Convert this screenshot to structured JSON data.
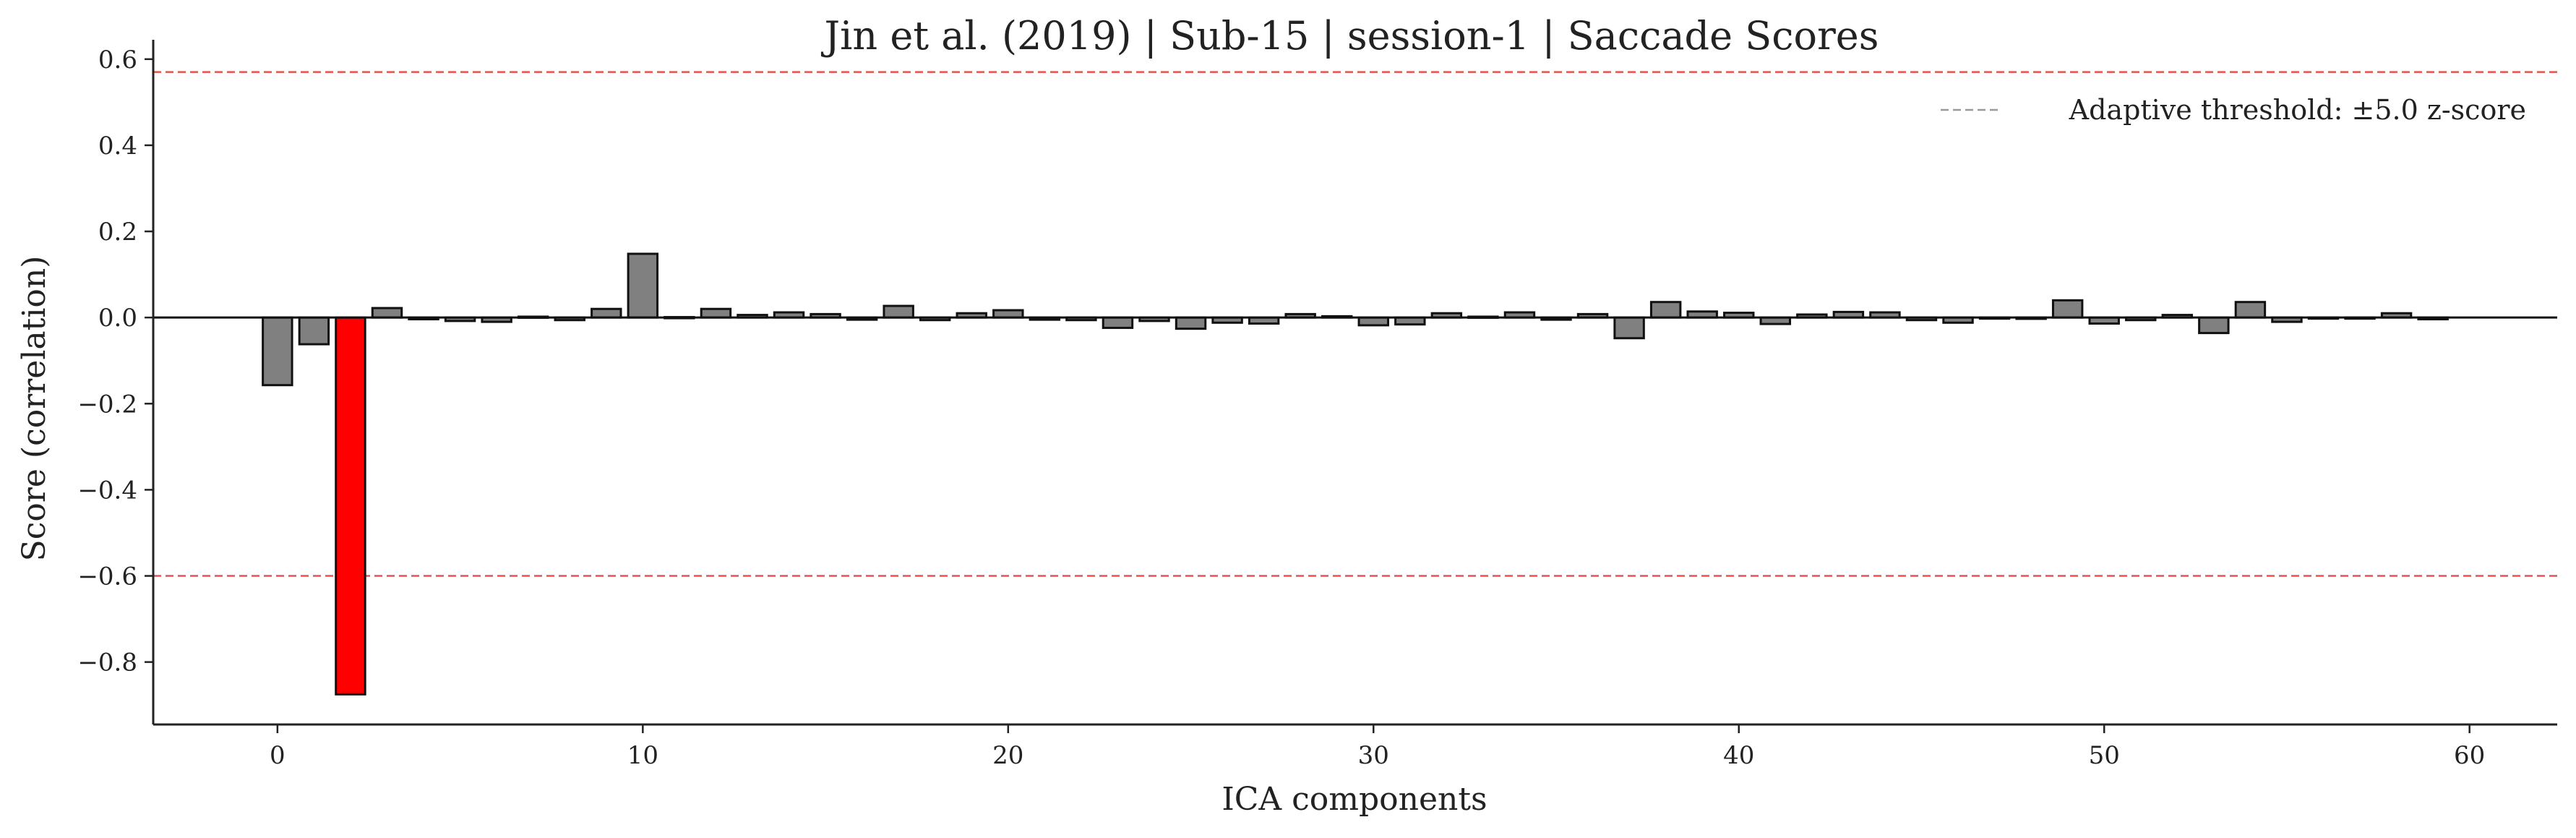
{
  "chart_data": {
    "type": "bar",
    "title": "Jin et al. (2019) | Sub-15 | session-1 | Saccade Scores",
    "xlabel": "ICA components",
    "ylabel": "Score (correlation)",
    "xlim": [
      -3.4,
      62.4
    ],
    "ylim": [
      -0.945,
      0.645
    ],
    "x_ticks": [
      0,
      10,
      20,
      30,
      40,
      50,
      60
    ],
    "y_ticks": [
      -0.8,
      -0.6,
      -0.4,
      -0.2,
      0.0,
      0.2,
      0.4,
      0.6
    ],
    "x_tick_labels": [
      "0",
      "10",
      "20",
      "30",
      "40",
      "50",
      "60"
    ],
    "y_tick_labels": [
      "−0.8",
      "−0.6",
      "−0.4",
      "−0.2",
      "0.0",
      "0.2",
      "0.4",
      "0.6"
    ],
    "thresholds": [
      0.57,
      -0.6
    ],
    "legend": {
      "label": "Adaptive threshold: ±5.0 z-score",
      "placement": "top-right"
    },
    "grid": false,
    "colors": {
      "bar": "#808080",
      "flagged_bar": "#ff0000",
      "edge": "#111111",
      "threshold": "#e8514f",
      "zero_line": "#111111"
    },
    "flagged_components": [
      2
    ],
    "x": [
      0,
      1,
      2,
      3,
      4,
      5,
      6,
      7,
      8,
      9,
      10,
      11,
      12,
      13,
      14,
      15,
      16,
      17,
      18,
      19,
      20,
      21,
      22,
      23,
      24,
      25,
      26,
      27,
      28,
      29,
      30,
      31,
      32,
      33,
      34,
      35,
      36,
      37,
      38,
      39,
      40,
      41,
      42,
      43,
      44,
      45,
      46,
      47,
      48,
      49,
      50,
      51,
      52,
      53,
      54,
      55,
      56,
      57,
      58,
      59
    ],
    "values": [
      -0.157,
      -0.062,
      -0.875,
      0.022,
      -0.004,
      -0.008,
      -0.01,
      0.002,
      -0.006,
      0.02,
      0.148,
      0.001,
      0.02,
      0.006,
      0.012,
      0.008,
      -0.005,
      0.027,
      -0.006,
      0.01,
      0.017,
      -0.005,
      -0.006,
      -0.024,
      -0.008,
      -0.026,
      -0.012,
      -0.014,
      0.008,
      0.003,
      -0.018,
      -0.016,
      0.01,
      0.002,
      0.012,
      -0.005,
      0.008,
      -0.048,
      0.036,
      0.014,
      0.011,
      -0.015,
      0.007,
      0.013,
      0.012,
      -0.006,
      -0.012,
      -0.002,
      -0.003,
      0.04,
      -0.014,
      -0.006,
      0.006,
      -0.036,
      0.036,
      -0.01,
      -0.002,
      -0.002,
      0.01,
      -0.004
    ]
  }
}
